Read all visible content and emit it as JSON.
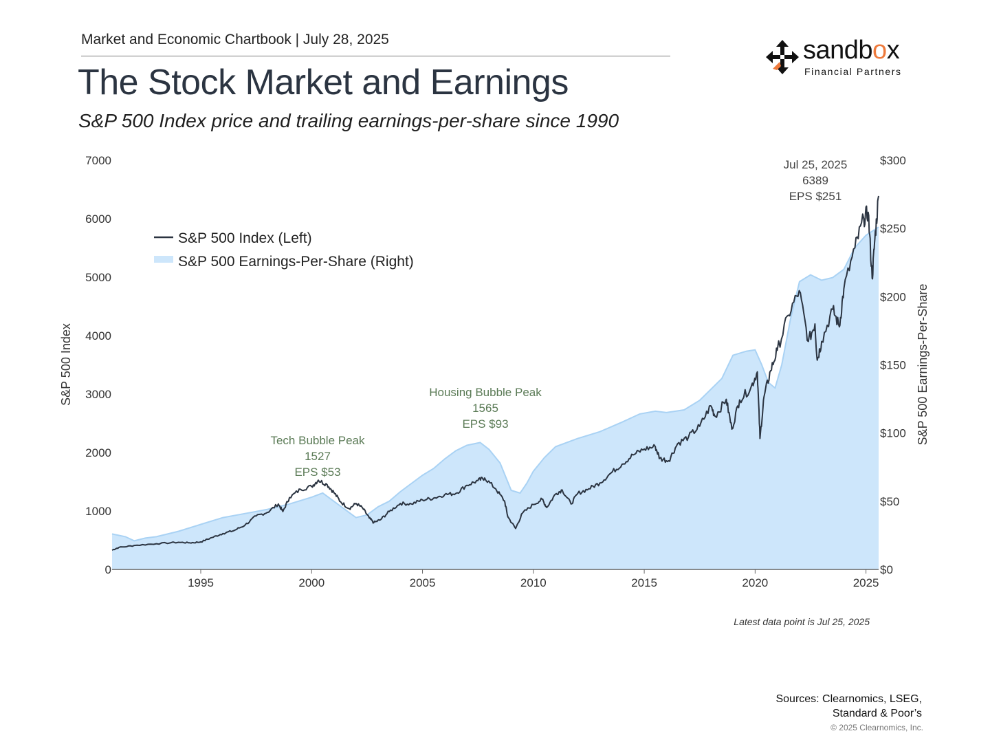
{
  "header": {
    "chartbook": "Market and Economic Chartbook | July 28, 2025",
    "title": "The Stock Market and Earnings",
    "subtitle": "S&P 500 Index price and trailing earnings-per-share since 1990"
  },
  "logo": {
    "name_prefix": "sandb",
    "name_accent": "o",
    "name_suffix": "x",
    "tagline": "Financial Partners",
    "accent_color": "#ee7a3c"
  },
  "chart_data": {
    "type": "area",
    "title": "The Stock Market and Earnings",
    "subtitle": "S&P 500 Index price and trailing earnings-per-share since 1990",
    "ylabel_left": "S&P 500 Index",
    "ylabel_right": "S&P 500 Earnings-Per-Share",
    "x_range": [
      1991.0,
      2025.57
    ],
    "ylim_left": [
      0,
      7000
    ],
    "ylim_right": [
      0,
      300
    ],
    "x_ticks": [
      1995,
      2000,
      2005,
      2010,
      2015,
      2020,
      2025
    ],
    "x_tick_labels": [
      "1995",
      "2000",
      "2005",
      "2010",
      "2015",
      "2020",
      "2025"
    ],
    "y_left_ticks": [
      0,
      1000,
      2000,
      3000,
      4000,
      5000,
      6000,
      7000
    ],
    "y_left_tick_labels": [
      "0",
      "1000",
      "2000",
      "3000",
      "4000",
      "5000",
      "6000",
      "7000"
    ],
    "y_right_ticks": [
      0,
      50,
      100,
      150,
      200,
      250,
      300
    ],
    "y_right_tick_labels": [
      "$0",
      "$50",
      "$100",
      "$150",
      "$200",
      "$250",
      "$300"
    ],
    "legend": {
      "position": "top-left",
      "index_label": "S&P 500 Index (Left)",
      "eps_label": "S&P 500 Earnings-Per-Share (Right)"
    },
    "series": [
      {
        "name": "S&P 500 Index (Left)",
        "axis": "left",
        "color": "#2b3441",
        "points": [
          [
            1991.0,
            330
          ],
          [
            1991.3,
            375
          ],
          [
            1992.0,
            410
          ],
          [
            1993.0,
            440
          ],
          [
            1994.0,
            465
          ],
          [
            1994.5,
            455
          ],
          [
            1995.0,
            470
          ],
          [
            1995.5,
            545
          ],
          [
            1996.0,
            615
          ],
          [
            1996.5,
            665
          ],
          [
            1997.0,
            760
          ],
          [
            1997.5,
            915
          ],
          [
            1998.0,
            975
          ],
          [
            1998.5,
            1120
          ],
          [
            1998.7,
            990
          ],
          [
            1999.0,
            1230
          ],
          [
            1999.5,
            1370
          ],
          [
            2000.0,
            1420
          ],
          [
            2000.3,
            1527
          ],
          [
            2000.7,
            1450
          ],
          [
            2001.0,
            1320
          ],
          [
            2001.3,
            1160
          ],
          [
            2001.7,
            1040
          ],
          [
            2002.0,
            1130
          ],
          [
            2002.3,
            1050
          ],
          [
            2002.6,
            880
          ],
          [
            2002.8,
            800
          ],
          [
            2003.1,
            850
          ],
          [
            2003.5,
            990
          ],
          [
            2004.0,
            1130
          ],
          [
            2004.5,
            1120
          ],
          [
            2005.0,
            1190
          ],
          [
            2005.5,
            1220
          ],
          [
            2006.0,
            1280
          ],
          [
            2006.5,
            1300
          ],
          [
            2007.0,
            1440
          ],
          [
            2007.5,
            1520
          ],
          [
            2007.8,
            1565
          ],
          [
            2008.3,
            1380
          ],
          [
            2008.7,
            1170
          ],
          [
            2008.85,
            900
          ],
          [
            2009.2,
            700
          ],
          [
            2009.5,
            960
          ],
          [
            2010.0,
            1110
          ],
          [
            2010.4,
            1200
          ],
          [
            2010.6,
            1060
          ],
          [
            2011.0,
            1290
          ],
          [
            2011.3,
            1360
          ],
          [
            2011.7,
            1120
          ],
          [
            2012.0,
            1300
          ],
          [
            2012.5,
            1380
          ],
          [
            2013.0,
            1480
          ],
          [
            2013.5,
            1650
          ],
          [
            2014.0,
            1800
          ],
          [
            2014.5,
            1960
          ],
          [
            2015.0,
            2060
          ],
          [
            2015.5,
            2100
          ],
          [
            2015.7,
            1900
          ],
          [
            2016.1,
            1860
          ],
          [
            2016.5,
            2150
          ],
          [
            2017.0,
            2270
          ],
          [
            2017.5,
            2450
          ],
          [
            2018.0,
            2800
          ],
          [
            2018.2,
            2620
          ],
          [
            2018.7,
            2910
          ],
          [
            2018.95,
            2400
          ],
          [
            2019.3,
            2900
          ],
          [
            2019.8,
            3100
          ],
          [
            2020.1,
            3380
          ],
          [
            2020.22,
            2240
          ],
          [
            2020.4,
            2950
          ],
          [
            2020.7,
            3400
          ],
          [
            2021.0,
            3750
          ],
          [
            2021.5,
            4350
          ],
          [
            2021.99,
            4770
          ],
          [
            2022.4,
            3900
          ],
          [
            2022.7,
            4200
          ],
          [
            2022.8,
            3580
          ],
          [
            2023.0,
            3900
          ],
          [
            2023.5,
            4450
          ],
          [
            2023.8,
            4150
          ],
          [
            2024.0,
            4800
          ],
          [
            2024.5,
            5500
          ],
          [
            2024.9,
            6000
          ],
          [
            2025.1,
            6110
          ],
          [
            2025.28,
            4980
          ],
          [
            2025.4,
            5650
          ],
          [
            2025.57,
            6389
          ]
        ]
      },
      {
        "name": "S&P 500 Earnings-Per-Share (Right)",
        "axis": "right",
        "color": "#cde6fb",
        "points": [
          [
            1991.0,
            26
          ],
          [
            1991.6,
            24
          ],
          [
            1992.0,
            21
          ],
          [
            1992.5,
            23
          ],
          [
            1993.0,
            24
          ],
          [
            1994.0,
            28
          ],
          [
            1995.0,
            33
          ],
          [
            1996.0,
            38
          ],
          [
            1997.0,
            41
          ],
          [
            1998.0,
            44
          ],
          [
            1999.0,
            48
          ],
          [
            2000.0,
            53
          ],
          [
            2000.5,
            56
          ],
          [
            2001.0,
            50
          ],
          [
            2001.5,
            44
          ],
          [
            2002.0,
            38
          ],
          [
            2002.5,
            40
          ],
          [
            2003.0,
            46
          ],
          [
            2003.5,
            50
          ],
          [
            2004.0,
            57
          ],
          [
            2004.5,
            63
          ],
          [
            2005.0,
            69
          ],
          [
            2005.5,
            74
          ],
          [
            2006.0,
            81
          ],
          [
            2006.5,
            87
          ],
          [
            2007.0,
            91
          ],
          [
            2007.6,
            93
          ],
          [
            2008.0,
            88
          ],
          [
            2008.5,
            78
          ],
          [
            2008.8,
            66
          ],
          [
            2009.0,
            58
          ],
          [
            2009.4,
            56
          ],
          [
            2009.7,
            63
          ],
          [
            2010.0,
            72
          ],
          [
            2010.5,
            82
          ],
          [
            2011.0,
            90
          ],
          [
            2012.0,
            96
          ],
          [
            2013.0,
            101
          ],
          [
            2014.0,
            108
          ],
          [
            2014.8,
            114
          ],
          [
            2015.5,
            116
          ],
          [
            2016.0,
            115
          ],
          [
            2016.8,
            117
          ],
          [
            2017.5,
            124
          ],
          [
            2018.5,
            140
          ],
          [
            2019.0,
            157
          ],
          [
            2019.6,
            160
          ],
          [
            2020.0,
            161
          ],
          [
            2020.3,
            150
          ],
          [
            2020.6,
            137
          ],
          [
            2020.9,
            133
          ],
          [
            2021.2,
            150
          ],
          [
            2021.6,
            184
          ],
          [
            2022.0,
            211
          ],
          [
            2022.5,
            216
          ],
          [
            2023.0,
            212
          ],
          [
            2023.5,
            214
          ],
          [
            2024.0,
            220
          ],
          [
            2024.5,
            236
          ],
          [
            2025.0,
            245
          ],
          [
            2025.57,
            251
          ]
        ]
      }
    ],
    "annotations": [
      {
        "lines": [
          "Tech Bubble Peak",
          "1527",
          "EPS $53"
        ],
        "x": 2000.3,
        "y": 1527
      },
      {
        "lines": [
          "Housing Bubble Peak",
          "1565",
          "EPS $93"
        ],
        "x": 2007.8,
        "y": 1565
      },
      {
        "lines": [
          "Jul 25, 2025",
          "6389",
          "EPS $251"
        ],
        "x": 2025.57,
        "y": 6389
      }
    ],
    "annotation_color": "#5a7a55",
    "latest_annotation_color": "#444444"
  },
  "footer": {
    "latest": "Latest data point is Jul 25, 2025",
    "sources_line1": "Sources: Clearnomics, LSEG,",
    "sources_line2": "Standard & Poor’s",
    "copyright": "© 2025 Clearnomics, Inc."
  }
}
